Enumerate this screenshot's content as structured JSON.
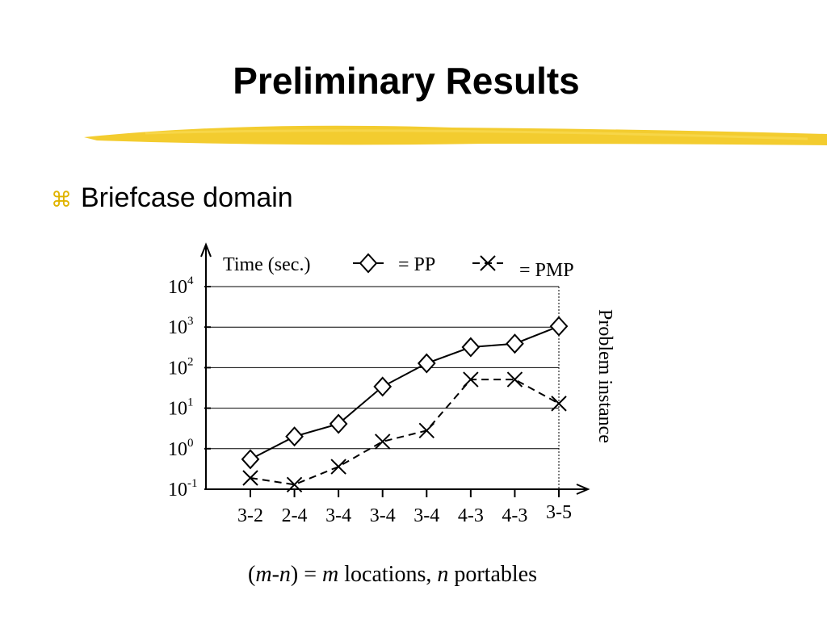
{
  "title": "Preliminary Results",
  "bullet": {
    "symbol": "⌘",
    "text": "Briefcase domain"
  },
  "chart_data": {
    "type": "line",
    "y_label": "Time (sec.)",
    "x_label": "Problem instance",
    "categories": [
      "3-2",
      "2-4",
      "3-4",
      "3-4",
      "3-4",
      "4-3",
      "4-3",
      "3-5"
    ],
    "series": [
      {
        "name": "= PP",
        "color": "#000000",
        "marker": "diamond",
        "dash": false,
        "values": [
          0.55,
          2.0,
          4.1,
          34,
          128,
          320,
          390,
          1050
        ]
      },
      {
        "name": "= PMP",
        "color": "#000000",
        "marker": "x",
        "dash": true,
        "values": [
          0.19,
          0.13,
          0.36,
          1.5,
          2.8,
          51,
          51,
          13
        ]
      }
    ],
    "log_scale": true,
    "ylim": [
      0.1,
      10000
    ],
    "yticks": [
      {
        "value": 0.1,
        "label": "10",
        "sup": "-1"
      },
      {
        "value": 1,
        "label": "10",
        "sup": "0"
      },
      {
        "value": 10,
        "label": "10",
        "sup": "1"
      },
      {
        "value": 100,
        "label": "10",
        "sup": "2"
      },
      {
        "value": 1000,
        "label": "10",
        "sup": "3"
      },
      {
        "value": 10000,
        "label": "10",
        "sup": "4"
      }
    ],
    "grid": true,
    "legend": "top"
  },
  "footnote": [
    "(",
    "m-n",
    ") = ",
    "m",
    " locations, ",
    "n",
    " portables"
  ]
}
